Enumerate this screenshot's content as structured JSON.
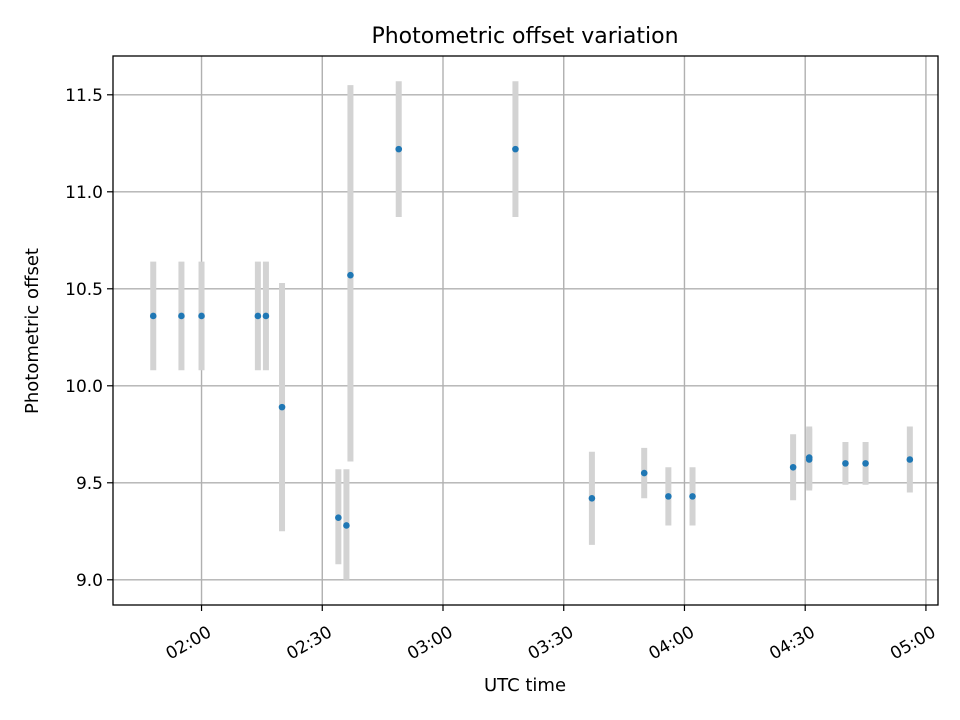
{
  "chart_data": {
    "type": "scatter",
    "title": "Photometric offset variation",
    "xlabel": "UTC time",
    "ylabel": "Photometric offset",
    "x_unit": "time of day",
    "xlim": [
      "01:38",
      "05:03"
    ],
    "ylim": [
      8.87,
      11.7
    ],
    "grid": true,
    "x_ticks": [
      "02:00",
      "02:30",
      "03:00",
      "03:30",
      "04:00",
      "04:30",
      "05:00"
    ],
    "y_ticks": [
      9.0,
      9.5,
      10.0,
      10.5,
      11.0,
      11.5
    ],
    "y_tick_labels": [
      "9.0",
      "9.5",
      "10.0",
      "10.5",
      "11.0",
      "11.5"
    ],
    "colors": {
      "point": "#1f77b4",
      "errorbar": "#d3d3d3",
      "grid": "#b0b0b0"
    },
    "points": [
      {
        "x": "01:48",
        "y": 10.36,
        "ylo": 10.08,
        "yhi": 10.64
      },
      {
        "x": "01:55",
        "y": 10.36,
        "ylo": 10.08,
        "yhi": 10.64
      },
      {
        "x": "02:00",
        "y": 10.36,
        "ylo": 10.08,
        "yhi": 10.64
      },
      {
        "x": "02:14",
        "y": 10.36,
        "ylo": 10.08,
        "yhi": 10.64
      },
      {
        "x": "02:16",
        "y": 10.36,
        "ylo": 10.08,
        "yhi": 10.64
      },
      {
        "x": "02:20",
        "y": 9.89,
        "ylo": 9.25,
        "yhi": 10.53
      },
      {
        "x": "02:34",
        "y": 9.32,
        "ylo": 9.08,
        "yhi": 9.57
      },
      {
        "x": "02:36",
        "y": 9.28,
        "ylo": 9.0,
        "yhi": 9.57
      },
      {
        "x": "02:37",
        "y": 10.57,
        "ylo": 9.61,
        "yhi": 11.55
      },
      {
        "x": "02:49",
        "y": 11.22,
        "ylo": 10.87,
        "yhi": 11.57
      },
      {
        "x": "03:18",
        "y": 11.22,
        "ylo": 10.87,
        "yhi": 11.57
      },
      {
        "x": "03:37",
        "y": 9.42,
        "ylo": 9.18,
        "yhi": 9.66
      },
      {
        "x": "03:50",
        "y": 9.55,
        "ylo": 9.42,
        "yhi": 9.68
      },
      {
        "x": "03:56",
        "y": 9.43,
        "ylo": 9.28,
        "yhi": 9.58
      },
      {
        "x": "04:02",
        "y": 9.43,
        "ylo": 9.28,
        "yhi": 9.58
      },
      {
        "x": "04:27",
        "y": 9.58,
        "ylo": 9.41,
        "yhi": 9.75
      },
      {
        "x": "04:31",
        "y": 9.62,
        "ylo": 9.46,
        "yhi": 9.78
      },
      {
        "x": "04:31",
        "y": 9.63,
        "ylo": 9.47,
        "yhi": 9.79
      },
      {
        "x": "04:40",
        "y": 9.6,
        "ylo": 9.49,
        "yhi": 9.71
      },
      {
        "x": "04:45",
        "y": 9.6,
        "ylo": 9.49,
        "yhi": 9.71
      },
      {
        "x": "04:56",
        "y": 9.62,
        "ylo": 9.45,
        "yhi": 9.79
      }
    ]
  }
}
